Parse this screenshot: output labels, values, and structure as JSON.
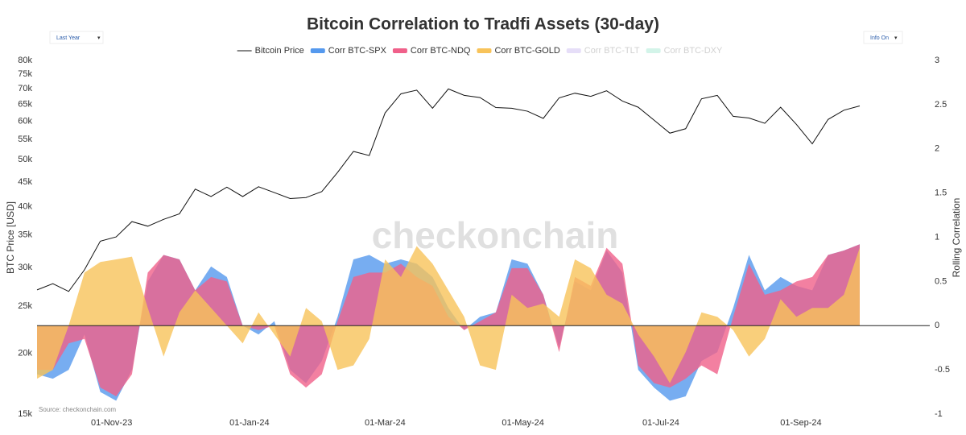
{
  "chart_data": {
    "type": "line_area",
    "title": "Bitcoin Correlation to Tradfi Assets (30-day)",
    "controls": [
      "Last Year",
      "Info On"
    ],
    "watermark": "checkonchain",
    "source": "Source: checkonchain.com",
    "ylabel": "BTC Price [USD]",
    "y2label": "Rolling Correlation",
    "ylog": true,
    "x": [
      "2023-09-29",
      "2023-10-06",
      "2023-10-13",
      "2023-10-20",
      "2023-10-27",
      "2023-11-03",
      "2023-11-10",
      "2023-11-17",
      "2023-11-24",
      "2023-12-01",
      "2023-12-08",
      "2023-12-15",
      "2023-12-22",
      "2023-12-29",
      "2024-01-05",
      "2024-01-12",
      "2024-01-19",
      "2024-01-26",
      "2024-02-02",
      "2024-02-09",
      "2024-02-16",
      "2024-02-23",
      "2024-03-01",
      "2024-03-08",
      "2024-03-15",
      "2024-03-22",
      "2024-03-29",
      "2024-04-05",
      "2024-04-12",
      "2024-04-19",
      "2024-04-26",
      "2024-05-03",
      "2024-05-10",
      "2024-05-17",
      "2024-05-24",
      "2024-05-31",
      "2024-06-07",
      "2024-06-14",
      "2024-06-21",
      "2024-06-28",
      "2024-07-05",
      "2024-07-12",
      "2024-07-19",
      "2024-07-26",
      "2024-08-02",
      "2024-08-09",
      "2024-08-16",
      "2024-08-23",
      "2024-08-30",
      "2024-09-06",
      "2024-09-13",
      "2024-09-20",
      "2024-09-27"
    ],
    "xlim": [
      "2023-09-29",
      "2024-10-28"
    ],
    "xticks": [
      {
        "value": "2023-11-01",
        "label": "01-Nov-23"
      },
      {
        "value": "2024-01-01",
        "label": "01-Jan-24"
      },
      {
        "value": "2024-03-01",
        "label": "01-Mar-24"
      },
      {
        "value": "2024-05-01",
        "label": "01-May-24"
      },
      {
        "value": "2024-07-01",
        "label": "01-Jul-24"
      },
      {
        "value": "2024-09-01",
        "label": "01-Sep-24"
      }
    ],
    "ylim": [
      15000,
      80000
    ],
    "yticks": [
      {
        "value": 15000,
        "label": "15k"
      },
      {
        "value": 20000,
        "label": "20k"
      },
      {
        "value": 25000,
        "label": "25k"
      },
      {
        "value": 30000,
        "label": "30k"
      },
      {
        "value": 35000,
        "label": "35k"
      },
      {
        "value": 40000,
        "label": "40k"
      },
      {
        "value": 45000,
        "label": "45k"
      },
      {
        "value": 50000,
        "label": "50k"
      },
      {
        "value": 55000,
        "label": "55k"
      },
      {
        "value": 60000,
        "label": "60k"
      },
      {
        "value": 65000,
        "label": "65k"
      },
      {
        "value": 70000,
        "label": "70k"
      },
      {
        "value": 75000,
        "label": "75k"
      },
      {
        "value": 80000,
        "label": "80k"
      }
    ],
    "y2lim": [
      -1,
      3
    ],
    "y2ticks": [
      -1,
      -0.5,
      0,
      0.5,
      1,
      1.5,
      2,
      2.5,
      3
    ],
    "series": [
      {
        "name": "Bitcoin Price",
        "color": "#111111",
        "kind": "line",
        "values": [
          27000,
          27800,
          26800,
          29700,
          34000,
          34700,
          37300,
          36500,
          37700,
          38700,
          43500,
          42000,
          43900,
          42000,
          44000,
          42800,
          41600,
          41800,
          43000,
          47100,
          52000,
          51000,
          62400,
          68300,
          69500,
          63800,
          69900,
          67800,
          67100,
          64000,
          63800,
          62900,
          60800,
          67000,
          68500,
          67500,
          69300,
          66000,
          64100,
          60300,
          56700,
          57900,
          66700,
          67800,
          61400,
          60900,
          59400,
          64100,
          59100,
          53900,
          60500,
          63200,
          64500
        ]
      },
      {
        "name": "Corr BTC-SPX",
        "color": "#5599ee",
        "kind": "area",
        "axis": "y2",
        "values": [
          -0.55,
          -0.6,
          -0.5,
          -0.1,
          -0.75,
          -0.85,
          -0.5,
          0.5,
          0.8,
          0.75,
          0.4,
          0.67,
          0.55,
          0.0,
          -0.1,
          0.05,
          -0.5,
          -0.65,
          -0.4,
          0.1,
          0.75,
          0.8,
          0.7,
          0.75,
          0.7,
          0.55,
          0.2,
          -0.05,
          0.1,
          0.15,
          0.75,
          0.7,
          0.35,
          -0.25,
          0.5,
          0.4,
          0.85,
          0.6,
          -0.5,
          -0.7,
          -0.85,
          -0.8,
          -0.4,
          -0.3,
          0.2,
          0.8,
          0.4,
          0.55,
          0.45,
          0.4,
          0.8,
          0.85,
          0.92
        ]
      },
      {
        "name": "Corr BTC-NDQ",
        "color": "#f0608a",
        "kind": "area",
        "axis": "y2",
        "values": [
          -0.5,
          -0.5,
          -0.2,
          -0.15,
          -0.7,
          -0.8,
          -0.55,
          0.6,
          0.8,
          0.75,
          0.4,
          0.55,
          0.5,
          0.0,
          -0.05,
          0.0,
          -0.55,
          -0.7,
          -0.55,
          0.05,
          0.55,
          0.6,
          0.6,
          0.7,
          0.55,
          0.45,
          0.1,
          -0.05,
          0.05,
          0.15,
          0.65,
          0.65,
          0.35,
          -0.3,
          0.55,
          0.45,
          0.88,
          0.7,
          -0.45,
          -0.65,
          -0.7,
          -0.6,
          -0.45,
          -0.55,
          0.1,
          0.7,
          0.35,
          0.4,
          0.5,
          0.55,
          0.8,
          0.85,
          0.92
        ]
      },
      {
        "name": "Corr BTC-GOLD",
        "color": "#f8c35a",
        "kind": "area",
        "axis": "y2",
        "values": [
          -0.6,
          -0.5,
          0.0,
          0.6,
          0.72,
          0.75,
          0.78,
          0.2,
          -0.35,
          0.15,
          0.4,
          0.2,
          0.0,
          -0.2,
          0.15,
          -0.1,
          -0.35,
          0.2,
          0.05,
          -0.5,
          -0.45,
          -0.15,
          0.75,
          0.55,
          0.9,
          0.7,
          0.4,
          0.1,
          -0.45,
          -0.5,
          0.35,
          0.2,
          0.25,
          0.1,
          0.75,
          0.65,
          0.35,
          0.25,
          -0.1,
          -0.35,
          -0.65,
          -0.3,
          0.15,
          0.1,
          -0.05,
          -0.35,
          -0.15,
          0.3,
          0.1,
          0.2,
          0.2,
          0.35,
          0.88
        ]
      },
      {
        "name": "Corr BTC-TLT",
        "color": "#c9b8f0",
        "kind": "area",
        "axis": "y2",
        "visible": false
      },
      {
        "name": "Corr BTC-DXY",
        "color": "#9fe8d0",
        "kind": "area",
        "axis": "y2",
        "visible": false
      }
    ]
  }
}
